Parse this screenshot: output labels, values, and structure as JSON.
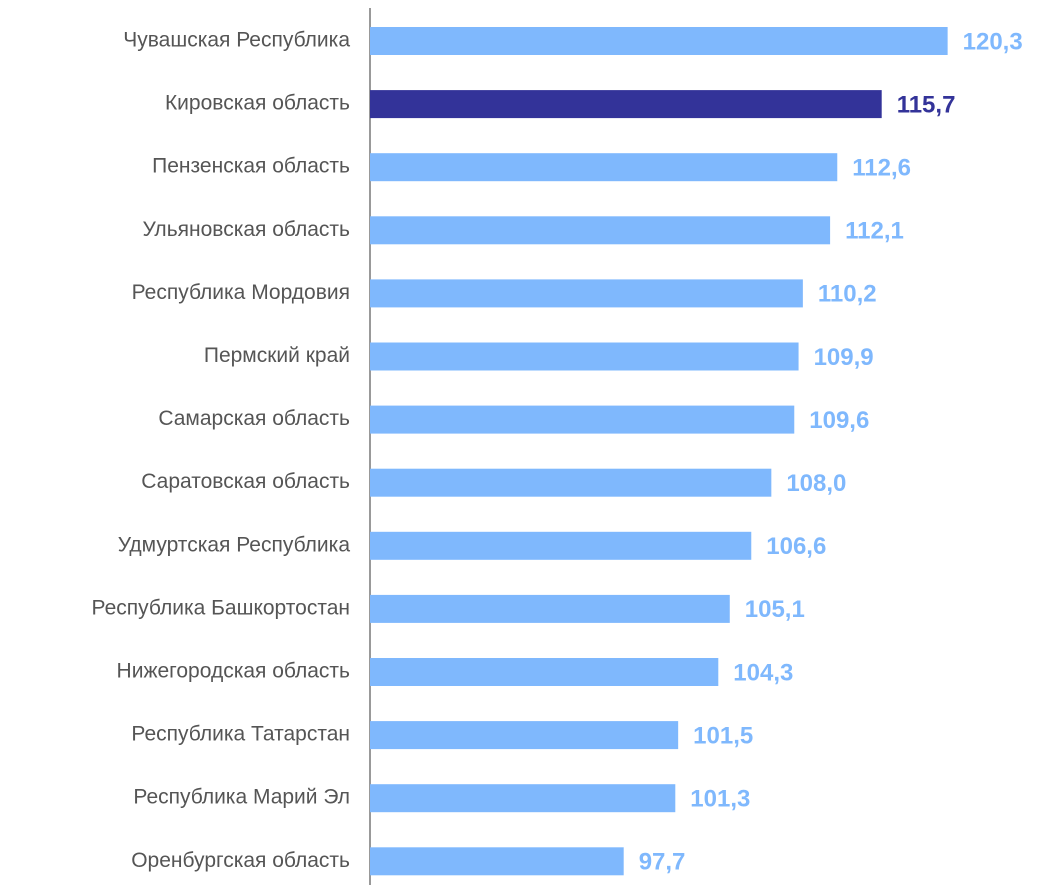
{
  "chart_data": {
    "type": "bar",
    "orientation": "horizontal",
    "categories": [
      "Чувашская Республика",
      "Кировская область",
      "Пензенская область",
      "Ульяновская область",
      "Республика Мордовия",
      "Пермский край",
      "Самарская область",
      "Саратовская область",
      "Удмуртская Республика",
      "Республика Башкортостан",
      "Нижегородская область",
      "Республика Татарстан",
      "Республика Марий Эл",
      "Оренбургская область"
    ],
    "values": [
      120.3,
      115.7,
      112.6,
      112.1,
      110.2,
      109.9,
      109.6,
      108.0,
      106.6,
      105.1,
      104.3,
      101.5,
      101.3,
      97.7
    ],
    "value_labels": [
      "120,3",
      "115,7",
      "112,6",
      "112,1",
      "110,2",
      "109,9",
      "109,6",
      "108,0",
      "106,6",
      "105,1",
      "104,3",
      "101,5",
      "101,3",
      "97,7"
    ],
    "colors": [
      "#7fb8fd",
      "#333399",
      "#7fb8fd",
      "#7fb8fd",
      "#7fb8fd",
      "#7fb8fd",
      "#7fb8fd",
      "#7fb8fd",
      "#7fb8fd",
      "#7fb8fd",
      "#7fb8fd",
      "#7fb8fd",
      "#7fb8fd",
      "#7fb8fd"
    ],
    "xlim": [
      80,
      125
    ],
    "grid": false
  }
}
